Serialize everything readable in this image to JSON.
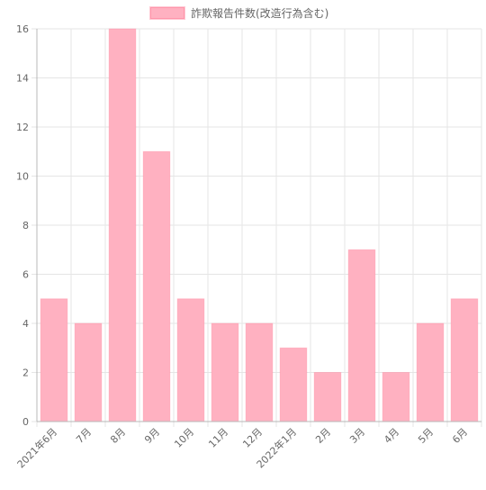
{
  "chart_data": {
    "type": "bar",
    "categories": [
      "2021年6月",
      "7月",
      "8月",
      "9月",
      "10月",
      "11月",
      "12月",
      "2022年1月",
      "2月",
      "3月",
      "4月",
      "5月",
      "6月"
    ],
    "series": [
      {
        "name": "詐欺報告件数(改造行為含む)",
        "values": [
          5,
          4,
          16,
          11,
          5,
          4,
          4,
          3,
          2,
          7,
          2,
          4,
          5
        ]
      }
    ],
    "ylim": [
      0,
      16
    ],
    "yticks": [
      0,
      2,
      4,
      6,
      8,
      10,
      12,
      14,
      16
    ],
    "grid": true,
    "legend_position": "top-center",
    "colors": {
      "bar_fill": "#ffb1c1",
      "bar_stroke": "#ff6384",
      "grid": "#e5e5e5",
      "axis": "#b8b8b8",
      "text": "#666666"
    }
  }
}
